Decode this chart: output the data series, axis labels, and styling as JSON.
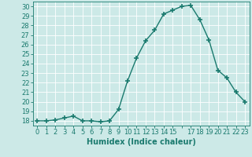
{
  "x": [
    0,
    1,
    2,
    3,
    4,
    5,
    6,
    7,
    8,
    9,
    10,
    11,
    12,
    13,
    14,
    15,
    16,
    17,
    18,
    19,
    20,
    21,
    22,
    23
  ],
  "y": [
    18.0,
    18.0,
    18.1,
    18.3,
    18.5,
    18.0,
    18.0,
    17.9,
    18.0,
    19.2,
    22.2,
    24.6,
    26.4,
    27.5,
    29.2,
    29.6,
    30.0,
    30.1,
    28.6,
    26.5,
    23.3,
    22.5,
    21.0,
    20.0
  ],
  "line_color": "#1a7a6e",
  "marker": "+",
  "marker_size": 4,
  "marker_linewidth": 1.2,
  "line_width": 1.0,
  "xlabel": "Humidex (Indice chaleur)",
  "bg_color": "#cce9e7",
  "grid_color": "#ffffff",
  "text_color": "#1a7a6e",
  "ylim": [
    17.5,
    30.5
  ],
  "xlim": [
    -0.5,
    23.5
  ],
  "yticks": [
    18,
    19,
    20,
    21,
    22,
    23,
    24,
    25,
    26,
    27,
    28,
    29,
    30
  ],
  "xticks": [
    0,
    1,
    2,
    3,
    4,
    5,
    6,
    7,
    8,
    9,
    10,
    11,
    12,
    13,
    14,
    15,
    16,
    17,
    18,
    19,
    20,
    21,
    22,
    23
  ],
  "xtick_labels": [
    "0",
    "1",
    "2",
    "3",
    "4",
    "5",
    "6",
    "7",
    "8",
    "9",
    "10",
    "11",
    "12",
    "13",
    "14",
    "15",
    "",
    "17",
    "18",
    "19",
    "20",
    "21",
    "22",
    "23"
  ],
  "font_size": 6,
  "xlabel_fontsize": 7
}
